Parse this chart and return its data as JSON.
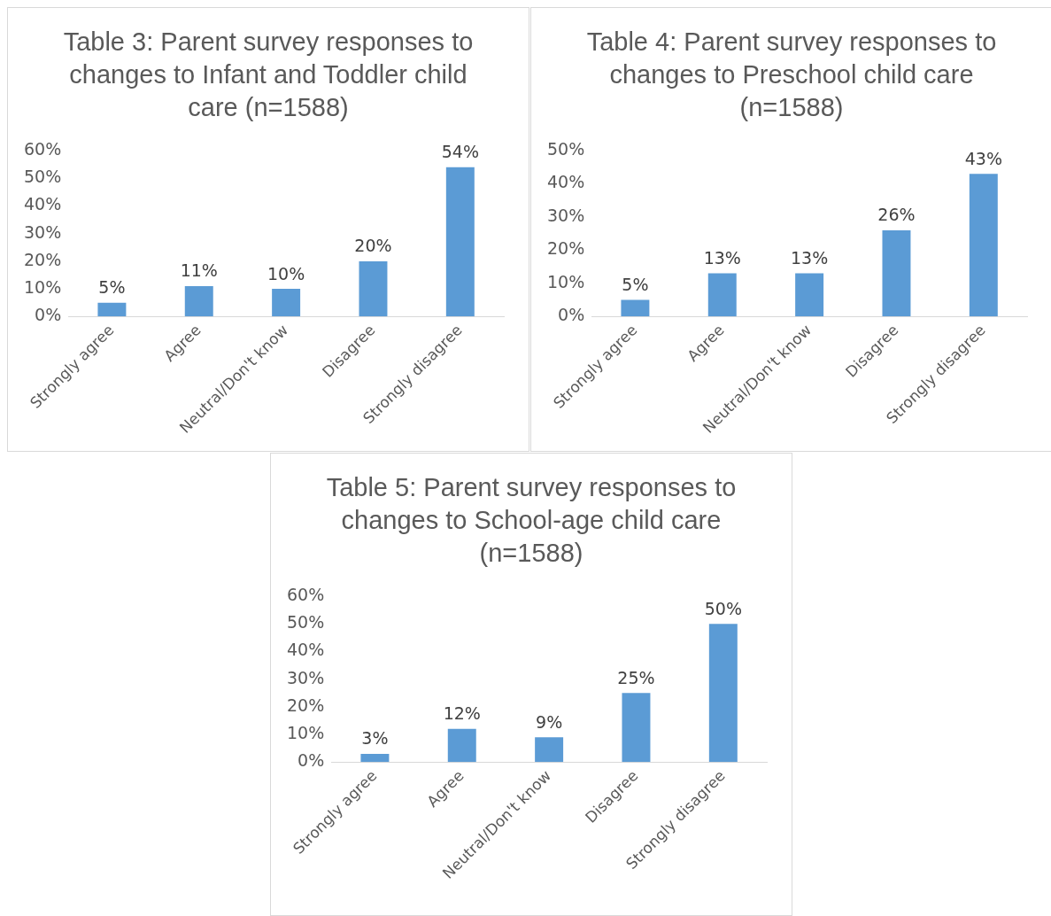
{
  "chart_data": [
    {
      "type": "bar",
      "title": "Table 3: Parent survey responses to changes to Infant and Toddler child care (n=1588)",
      "categories": [
        "Strongly agree",
        "Agree",
        "Neutral/Don't know",
        "Disagree",
        "Strongly disagree"
      ],
      "values": [
        5,
        11,
        10,
        20,
        54
      ],
      "value_labels": [
        "5%",
        "11%",
        "10%",
        "20%",
        "54%"
      ],
      "color": "#5b9bd5",
      "ylim": [
        0,
        60
      ],
      "yticks": [
        {
          "value": 0,
          "label": "0%"
        },
        {
          "value": 10,
          "label": "10%"
        },
        {
          "value": 20,
          "label": "20%"
        },
        {
          "value": 30,
          "label": "30%"
        },
        {
          "value": 40,
          "label": "40%"
        },
        {
          "value": 50,
          "label": "50%"
        },
        {
          "value": 60,
          "label": "60%"
        }
      ]
    },
    {
      "type": "bar",
      "title": "Table 4: Parent survey responses to changes to Preschool child care (n=1588)",
      "categories": [
        "Strongly agree",
        "Agree",
        "Neutral/Don't know",
        "Disagree",
        "Strongly disagree"
      ],
      "values": [
        5,
        13,
        13,
        26,
        43
      ],
      "value_labels": [
        "5%",
        "13%",
        "13%",
        "26%",
        "43%"
      ],
      "color": "#5b9bd5",
      "ylim": [
        0,
        50
      ],
      "yticks": [
        {
          "value": 0,
          "label": "0%"
        },
        {
          "value": 10,
          "label": "10%"
        },
        {
          "value": 20,
          "label": "20%"
        },
        {
          "value": 30,
          "label": "30%"
        },
        {
          "value": 40,
          "label": "40%"
        },
        {
          "value": 50,
          "label": "50%"
        }
      ]
    },
    {
      "type": "bar",
      "title": "Table 5: Parent survey responses to changes to School-age child care (n=1588)",
      "categories": [
        "Strongly agree",
        "Agree",
        "Neutral/Don't know",
        "Disagree",
        "Strongly disagree"
      ],
      "values": [
        3,
        12,
        9,
        25,
        50
      ],
      "value_labels": [
        "3%",
        "12%",
        "9%",
        "25%",
        "50%"
      ],
      "color": "#5b9bd5",
      "ylim": [
        0,
        60
      ],
      "yticks": [
        {
          "value": 0,
          "label": "0%"
        },
        {
          "value": 10,
          "label": "10%"
        },
        {
          "value": 20,
          "label": "20%"
        },
        {
          "value": 30,
          "label": "30%"
        },
        {
          "value": 40,
          "label": "40%"
        },
        {
          "value": 50,
          "label": "50%"
        },
        {
          "value": 60,
          "label": "60%"
        }
      ]
    }
  ]
}
